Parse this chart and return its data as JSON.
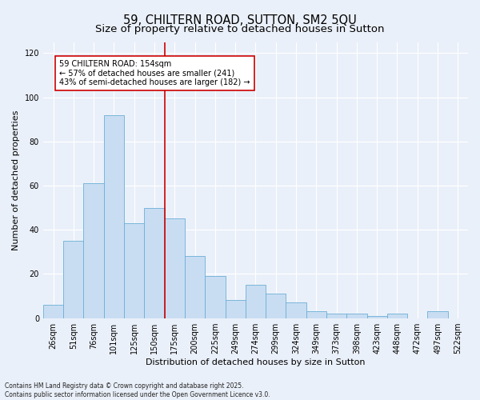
{
  "title": "59, CHILTERN ROAD, SUTTON, SM2 5QU",
  "subtitle": "Size of property relative to detached houses in Sutton",
  "xlabel": "Distribution of detached houses by size in Sutton",
  "ylabel": "Number of detached properties",
  "bar_labels": [
    "26sqm",
    "51sqm",
    "76sqm",
    "101sqm",
    "125sqm",
    "150sqm",
    "175sqm",
    "200sqm",
    "225sqm",
    "249sqm",
    "274sqm",
    "299sqm",
    "324sqm",
    "349sqm",
    "373sqm",
    "398sqm",
    "423sqm",
    "448sqm",
    "472sqm",
    "497sqm",
    "522sqm"
  ],
  "bar_values": [
    6,
    35,
    61,
    92,
    43,
    50,
    45,
    28,
    19,
    8,
    15,
    11,
    7,
    3,
    2,
    2,
    1,
    2,
    0,
    3,
    0
  ],
  "bar_color": "#c9ddf2",
  "bar_edge_color": "#6aaed6",
  "background_color": "#eaf0f9",
  "vline_x": 5.5,
  "vline_color": "#cc0000",
  "annotation_text": "59 CHILTERN ROAD: 154sqm\n← 57% of detached houses are smaller (241)\n43% of semi-detached houses are larger (182) →",
  "annotation_box_color": "white",
  "annotation_box_edge": "#cc0000",
  "ylim": [
    0,
    125
  ],
  "yticks": [
    0,
    20,
    40,
    60,
    80,
    100,
    120
  ],
  "footer_text": "Contains HM Land Registry data © Crown copyright and database right 2025.\nContains public sector information licensed under the Open Government Licence v3.0.",
  "title_fontsize": 10.5,
  "subtitle_fontsize": 9.5,
  "ylabel_fontsize": 8,
  "xlabel_fontsize": 8,
  "tick_fontsize": 7,
  "annotation_fontsize": 7,
  "footer_fontsize": 5.5
}
